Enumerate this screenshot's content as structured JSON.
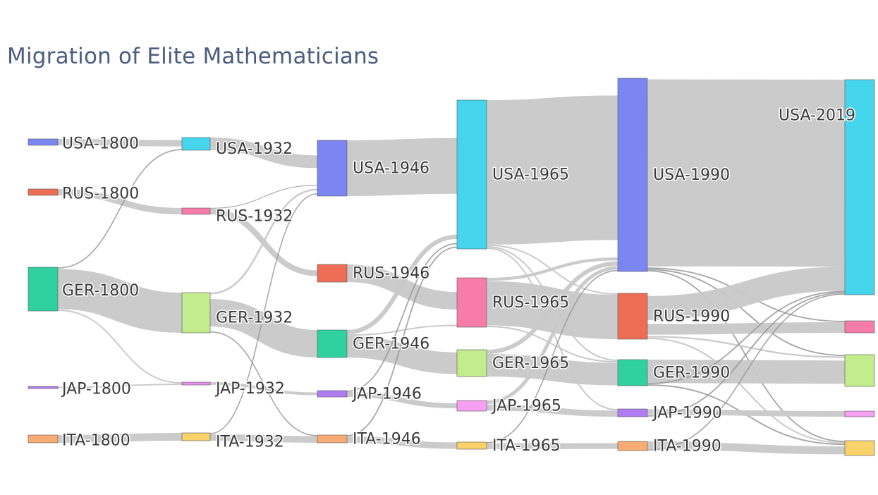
{
  "chart_data": {
    "type": "sankey",
    "title": "Migration of Elite Mathematicians",
    "link_color": "#c8c8c8",
    "nodes": [
      {
        "id": "USA-1800",
        "label": "USA-1800",
        "color": "#7b86f2"
      },
      {
        "id": "RUS-1800",
        "label": "RUS-1800",
        "color": "#ee6e55"
      },
      {
        "id": "GER-1800",
        "label": "GER-1800",
        "color": "#2fd29f"
      },
      {
        "id": "JAP-1800",
        "label": "JAP-1800",
        "color": "#b07cf2"
      },
      {
        "id": "ITA-1800",
        "label": "ITA-1800",
        "color": "#f7ac74"
      },
      {
        "id": "USA-1932",
        "label": "USA-1932",
        "color": "#45d6ee"
      },
      {
        "id": "RUS-1932",
        "label": "RUS-1932",
        "color": "#f77da8"
      },
      {
        "id": "GER-1932",
        "label": "GER-1932",
        "color": "#c3ec8d"
      },
      {
        "id": "JAP-1932",
        "label": "JAP-1932",
        "color": "#e88ff0"
      },
      {
        "id": "ITA-1932",
        "label": "ITA-1932",
        "color": "#f9d26a"
      },
      {
        "id": "USA-1946",
        "label": "USA-1946",
        "color": "#7b86f2"
      },
      {
        "id": "RUS-1946",
        "label": "RUS-1946",
        "color": "#ee6e55"
      },
      {
        "id": "GER-1946",
        "label": "GER-1946",
        "color": "#2fd29f"
      },
      {
        "id": "JAP-1946",
        "label": "JAP-1946",
        "color": "#b07cf2"
      },
      {
        "id": "ITA-1946",
        "label": "ITA-1946",
        "color": "#f7ac74"
      },
      {
        "id": "USA-1965",
        "label": "USA-1965",
        "color": "#45d6ee"
      },
      {
        "id": "RUS-1965",
        "label": "RUS-1965",
        "color": "#f77da8"
      },
      {
        "id": "GER-1965",
        "label": "GER-1965",
        "color": "#c3ec8d"
      },
      {
        "id": "JAP-1965",
        "label": "JAP-1965",
        "color": "#f79ff0"
      },
      {
        "id": "ITA-1965",
        "label": "ITA-1965",
        "color": "#f9d26a"
      },
      {
        "id": "USA-1990",
        "label": "USA-1990",
        "color": "#7b86f2"
      },
      {
        "id": "RUS-1990",
        "label": "RUS-1990",
        "color": "#ee6e55"
      },
      {
        "id": "GER-1990",
        "label": "GER-1990",
        "color": "#2fd29f"
      },
      {
        "id": "JAP-1990",
        "label": "JAP-1990",
        "color": "#b07cf2"
      },
      {
        "id": "ITA-1990",
        "label": "ITA-1990",
        "color": "#f7ac74"
      },
      {
        "id": "USA-2019",
        "label": "USA-2019",
        "color": "#45d6ee"
      },
      {
        "id": "RUS-2019",
        "label": "",
        "color": "#f77da8"
      },
      {
        "id": "GER-2019",
        "label": "",
        "color": "#c3ec8d"
      },
      {
        "id": "JAP-2019",
        "label": "",
        "color": "#f79ff0"
      },
      {
        "id": "ITA-2019",
        "label": "",
        "color": "#f9d26a"
      }
    ],
    "links": [
      {
        "source": "USA-1800",
        "target": "USA-1932",
        "value": 1
      },
      {
        "source": "RUS-1800",
        "target": "RUS-1932",
        "value": 1
      },
      {
        "source": "GER-1800",
        "target": "USA-1932",
        "value": 0.1
      },
      {
        "source": "GER-1800",
        "target": "GER-1932",
        "value": 2.8
      },
      {
        "source": "GER-1800",
        "target": "JAP-1932",
        "value": 0.1
      },
      {
        "source": "JAP-1800",
        "target": "JAP-1932",
        "value": 0.1
      },
      {
        "source": "ITA-1800",
        "target": "ITA-1932",
        "value": 0.7
      },
      {
        "source": "USA-1932",
        "target": "USA-1946",
        "value": 1
      },
      {
        "source": "RUS-1932",
        "target": "USA-1946",
        "value": 0.1
      },
      {
        "source": "RUS-1932",
        "target": "RUS-1946",
        "value": 0.9
      },
      {
        "source": "GER-1932",
        "target": "USA-1946",
        "value": 0.1
      },
      {
        "source": "GER-1932",
        "target": "GER-1946",
        "value": 2
      },
      {
        "source": "GER-1932",
        "target": "ITA-1946",
        "value": 0.1
      },
      {
        "source": "ITA-1932",
        "target": "USA-1946",
        "value": 0.1
      },
      {
        "source": "ITA-1932",
        "target": "ITA-1946",
        "value": 0.6
      },
      {
        "source": "JAP-1932",
        "target": "JAP-1946",
        "value": 0.4
      },
      {
        "source": "USA-1946",
        "target": "USA-1965",
        "value": 3.8
      },
      {
        "source": "RUS-1946",
        "target": "RUS-1965",
        "value": 1.3
      },
      {
        "source": "GER-1946",
        "target": "USA-1965",
        "value": 0.3
      },
      {
        "source": "GER-1946",
        "target": "RUS-1965",
        "value": 0.1
      },
      {
        "source": "GER-1946",
        "target": "GER-1965",
        "value": 1.5
      },
      {
        "source": "JAP-1946",
        "target": "USA-1965",
        "value": 0.1
      },
      {
        "source": "JAP-1946",
        "target": "JAP-1965",
        "value": 0.4
      },
      {
        "source": "ITA-1946",
        "target": "USA-1965",
        "value": 0.1
      },
      {
        "source": "ITA-1946",
        "target": "ITA-1965",
        "value": 0.5
      },
      {
        "source": "USA-1965",
        "target": "USA-1990",
        "value": 10
      },
      {
        "source": "USA-1965",
        "target": "RUS-1990",
        "value": 0.1
      },
      {
        "source": "USA-1965",
        "target": "GER-1990",
        "value": 0.1
      },
      {
        "source": "USA-1965",
        "target": "JAP-1990",
        "value": 0.1
      },
      {
        "source": "RUS-1965",
        "target": "USA-1990",
        "value": 0.2
      },
      {
        "source": "RUS-1965",
        "target": "RUS-1990",
        "value": 3
      },
      {
        "source": "RUS-1965",
        "target": "GER-1990",
        "value": 0.1
      },
      {
        "source": "GER-1965",
        "target": "USA-1990",
        "value": 0.3
      },
      {
        "source": "GER-1965",
        "target": "GER-1990",
        "value": 1.6
      },
      {
        "source": "JAP-1965",
        "target": "USA-1990",
        "value": 0.2
      },
      {
        "source": "JAP-1965",
        "target": "JAP-1990",
        "value": 0.4
      },
      {
        "source": "ITA-1965",
        "target": "USA-1990",
        "value": 0.1
      },
      {
        "source": "ITA-1965",
        "target": "ITA-1990",
        "value": 0.5
      },
      {
        "source": "USA-1990",
        "target": "USA-2019",
        "value": 14
      },
      {
        "source": "USA-1990",
        "target": "RUS-2019",
        "value": 0.1
      },
      {
        "source": "USA-1990",
        "target": "GER-2019",
        "value": 0.1
      },
      {
        "source": "USA-1990",
        "target": "ITA-2019",
        "value": 0.1
      },
      {
        "source": "RUS-1990",
        "target": "USA-2019",
        "value": 1.8
      },
      {
        "source": "RUS-1990",
        "target": "RUS-2019",
        "value": 0.8
      },
      {
        "source": "RUS-1990",
        "target": "GER-2019",
        "value": 0.1
      },
      {
        "source": "RUS-1990",
        "target": "ITA-2019",
        "value": 0.1
      },
      {
        "source": "GER-1990",
        "target": "GER-2019",
        "value": 1.7
      },
      {
        "source": "GER-1990",
        "target": "USA-2019",
        "value": 0.1
      },
      {
        "source": "GER-1990",
        "target": "ITA-2019",
        "value": 0.1
      },
      {
        "source": "JAP-1990",
        "target": "JAP-2019",
        "value": 0.4
      },
      {
        "source": "JAP-1990",
        "target": "USA-2019",
        "value": 0.1
      },
      {
        "source": "ITA-1990",
        "target": "ITA-2019",
        "value": 0.7
      },
      {
        "source": "ITA-1990",
        "target": "USA-2019",
        "value": 0.1
      }
    ]
  }
}
